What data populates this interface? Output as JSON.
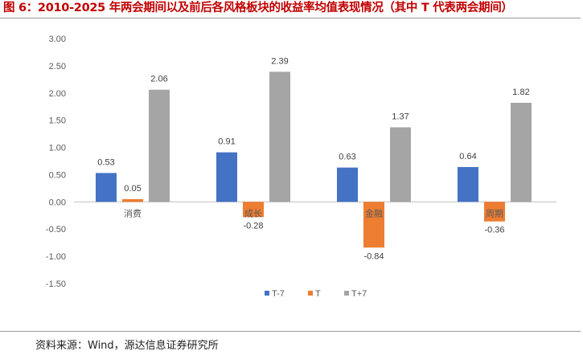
{
  "title": "图 6：2010-2025 年两会期间以及前后各风格板块的收益率均值表现情况（其中 T 代表两会期间）",
  "source": "资料来源：Wind，源达信息证券研究所",
  "colors": {
    "title": "#c00000",
    "t_minus_7": "#4472c4",
    "t": "#ed7d31",
    "t_plus_7": "#a5a5a5"
  },
  "chart_data": {
    "type": "bar",
    "categories": [
      "消费",
      "成长",
      "金融",
      "周期"
    ],
    "series": [
      {
        "name": "T-7",
        "values": [
          0.53,
          0.91,
          0.63,
          0.64
        ]
      },
      {
        "name": "T",
        "values": [
          0.05,
          -0.28,
          -0.84,
          -0.36
        ]
      },
      {
        "name": "T+7",
        "values": [
          2.06,
          2.39,
          1.37,
          1.82
        ]
      }
    ],
    "data_labels": [
      [
        "0.53",
        "0.91",
        "0.63",
        "0.64"
      ],
      [
        "0.05",
        "-0.28",
        "-0.84",
        "-0.36"
      ],
      [
        "2.06",
        "2.39",
        "1.37",
        "1.82"
      ]
    ],
    "y_ticks": [
      "3.00",
      "2.50",
      "2.00",
      "1.50",
      "1.00",
      "0.50",
      "0.00",
      "-0.50",
      "-1.00",
      "-1.50"
    ],
    "ylim": [
      -1.5,
      3.0
    ],
    "grid": false,
    "legend_position": "bottom-center"
  }
}
